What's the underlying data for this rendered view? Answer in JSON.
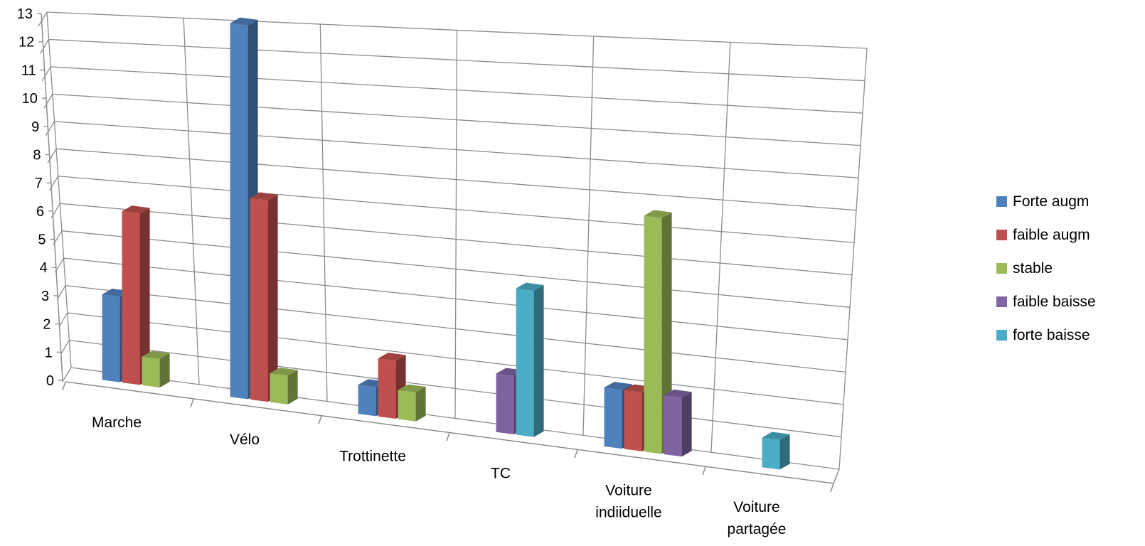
{
  "chart_data": {
    "type": "bar",
    "categories": [
      "Marche",
      "Vélo",
      "Trottinette",
      "TC",
      "Voiture indiiduelle",
      "Voiture partagée"
    ],
    "category_lines": [
      [
        "Marche"
      ],
      [
        "Vélo"
      ],
      [
        "Trottinette"
      ],
      [
        "TC"
      ],
      [
        "Voiture",
        "indiiduelle"
      ],
      [
        "Voiture",
        "partagée"
      ]
    ],
    "series": [
      {
        "name": "Forte augm",
        "color": "#4f81bd",
        "values": [
          3,
          13,
          1,
          0,
          2,
          0
        ]
      },
      {
        "name": "faible augm",
        "color": "#c0504d",
        "values": [
          6,
          7,
          2,
          0,
          2,
          0
        ]
      },
      {
        "name": "stable",
        "color": "#9bbb59",
        "values": [
          1,
          1,
          1,
          0,
          8,
          0
        ]
      },
      {
        "name": "faible baisse",
        "color": "#8064a2",
        "values": [
          0,
          0,
          0,
          2,
          2,
          0
        ]
      },
      {
        "name": "forte baisse",
        "color": "#4bacc6",
        "values": [
          0,
          0,
          0,
          5,
          0,
          1
        ]
      }
    ],
    "y_ticks": [
      "0",
      "1",
      "2",
      "3",
      "4",
      "5",
      "6",
      "7",
      "8",
      "9",
      "10",
      "11",
      "12",
      "13"
    ],
    "ylim": [
      0,
      13
    ],
    "grid": true,
    "legend": "right",
    "style": "3d-clustered-column"
  }
}
